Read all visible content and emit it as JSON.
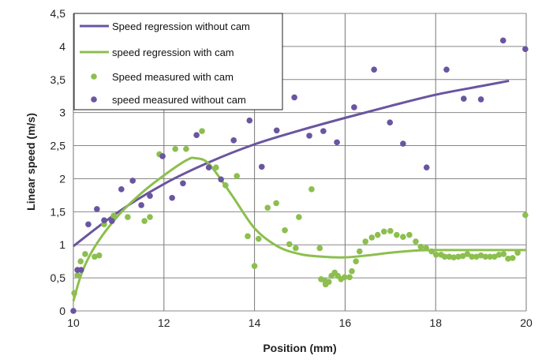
{
  "chart_data": {
    "type": "scatter",
    "xlabel": "Position (mm)",
    "ylabel": "Linear speed (m/s)",
    "xlim": [
      10,
      20
    ],
    "ylim": [
      0,
      4.5
    ],
    "xticks": [
      "10",
      "12",
      "14",
      "16",
      "18",
      "20"
    ],
    "yticks": [
      "0",
      "0,5",
      "1",
      "1,5",
      "2",
      "2,5",
      "3",
      "3,5",
      "4",
      "4,5"
    ],
    "grid": true,
    "legend_placement": "top-left",
    "colors": {
      "without_cam": "#6a55a0",
      "with_cam": "#8cbf4e"
    },
    "series": [
      {
        "name": "Speed regression without cam",
        "kind": "line",
        "color": "#6a55a0",
        "x": [
          10,
          11,
          12,
          13,
          14,
          15,
          16,
          17,
          18,
          19,
          19.62
        ],
        "y": [
          0.98,
          1.5,
          1.92,
          2.25,
          2.52,
          2.73,
          2.92,
          3.1,
          3.27,
          3.4,
          3.48
        ]
      },
      {
        "name": "speed regression with cam",
        "kind": "line",
        "color": "#8cbf4e",
        "x": [
          10,
          10.2,
          10.5,
          11,
          11.5,
          12,
          12.5,
          12.7,
          13,
          13.5,
          14,
          14.5,
          15,
          15.5,
          16,
          16.5,
          17,
          17.5,
          18,
          19,
          20
        ],
        "y": [
          0.15,
          0.6,
          1.0,
          1.45,
          1.78,
          2.05,
          2.28,
          2.31,
          2.22,
          1.75,
          1.25,
          0.98,
          0.86,
          0.82,
          0.81,
          0.84,
          0.88,
          0.91,
          0.92,
          0.92,
          0.92
        ]
      },
      {
        "name": "Speed measured with cam",
        "kind": "scatter",
        "color": "#8cbf4e",
        "x": [
          10.02,
          10.09,
          10.16,
          10.26,
          10.47,
          10.57,
          10.68,
          10.89,
          11.2,
          11.57,
          11.69,
          11.9,
          12.25,
          12.49,
          12.84,
          13.15,
          13.36,
          13.61,
          13.85,
          14.0,
          14.09,
          14.29,
          14.48,
          14.67,
          14.77,
          14.91,
          14.98,
          15.26,
          15.44,
          15.47,
          15.56,
          15.57,
          15.64,
          15.7,
          15.77,
          15.84,
          15.91,
          15.99,
          16.1,
          16.15,
          16.24,
          16.32,
          16.45,
          16.59,
          16.72,
          16.86,
          17.0,
          17.14,
          17.28,
          17.42,
          17.56,
          17.67,
          17.79,
          17.91,
          18.01,
          18.12,
          18.2,
          18.3,
          18.4,
          18.5,
          18.6,
          18.7,
          18.8,
          18.9,
          19.0,
          19.1,
          19.2,
          19.3,
          19.4,
          19.5,
          19.6,
          19.7,
          19.81,
          19.98
        ],
        "y": [
          0.27,
          0.54,
          0.75,
          0.86,
          0.82,
          0.84,
          1.31,
          1.44,
          1.42,
          1.36,
          1.42,
          2.37,
          2.45,
          2.45,
          2.72,
          2.17,
          1.9,
          2.04,
          1.13,
          0.68,
          1.09,
          1.56,
          1.63,
          1.22,
          1.01,
          0.95,
          1.42,
          1.84,
          0.95,
          0.48,
          0.45,
          0.4,
          0.44,
          0.53,
          0.58,
          0.53,
          0.48,
          0.51,
          0.51,
          0.6,
          0.75,
          0.9,
          1.05,
          1.11,
          1.15,
          1.2,
          1.21,
          1.15,
          1.12,
          1.15,
          1.05,
          0.97,
          0.95,
          0.9,
          0.85,
          0.85,
          0.82,
          0.82,
          0.81,
          0.82,
          0.83,
          0.86,
          0.82,
          0.82,
          0.84,
          0.82,
          0.82,
          0.82,
          0.85,
          0.86,
          0.79,
          0.8,
          0.88,
          1.45
        ]
      },
      {
        "name": "speed measured without cam",
        "kind": "scatter",
        "color": "#6a55a0",
        "x": [
          10.0,
          10.09,
          10.17,
          10.33,
          10.52,
          10.68,
          10.85,
          11.06,
          11.31,
          11.5,
          11.69,
          11.97,
          12.18,
          12.42,
          12.72,
          12.99,
          13.26,
          13.54,
          13.89,
          14.16,
          14.49,
          14.88,
          15.21,
          15.52,
          15.82,
          16.2,
          16.64,
          16.99,
          17.28,
          17.8,
          18.24,
          18.62,
          19.0,
          19.49,
          19.98
        ],
        "y": [
          0,
          0.62,
          0.62,
          1.31,
          1.54,
          1.37,
          1.36,
          1.84,
          1.97,
          1.6,
          1.74,
          2.34,
          1.71,
          1.93,
          2.66,
          2.17,
          1.99,
          2.58,
          2.88,
          2.18,
          2.73,
          3.23,
          2.65,
          2.72,
          2.55,
          3.08,
          3.65,
          2.85,
          2.53,
          2.17,
          3.65,
          3.21,
          3.2,
          4.09,
          3.96
        ]
      }
    ]
  }
}
